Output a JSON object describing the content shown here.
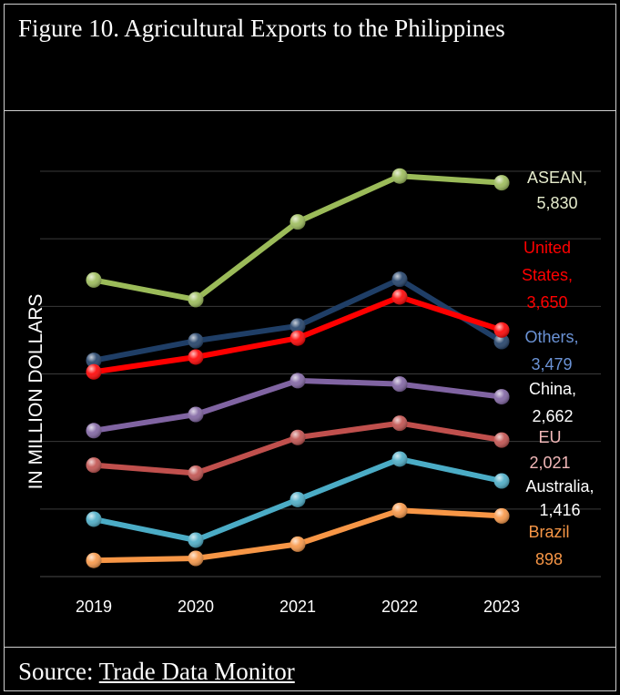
{
  "title": "Figure 10. Agricultural Exports to the Philippines",
  "source": {
    "prefix": "Source: ",
    "link_text": "Trade Data Monitor"
  },
  "chart_data": {
    "type": "line",
    "title": "Figure 10. Agricultural Exports to the Philippines",
    "xlabel": "",
    "ylabel": "IN MILLION DOLLARS",
    "categories": [
      "2019",
      "2020",
      "2021",
      "2022",
      "2023"
    ],
    "ylim": [
      0,
      6000
    ],
    "grid": true,
    "y_tick_labels_shown": false,
    "series": [
      {
        "name": "ASEAN",
        "end_label": [
          "ASEAN,",
          "5,830"
        ],
        "color": "#9bbb59",
        "label_color": "#e6eccd",
        "values": [
          4390,
          4100,
          5250,
          5930,
          5830
        ]
      },
      {
        "name": "Others",
        "end_label": [
          "Others,",
          "3,479"
        ],
        "color": "#1f3e66",
        "label_color": "#6b93d6",
        "values": [
          3200,
          3490,
          3710,
          4400,
          3479
        ]
      },
      {
        "name": "United States",
        "end_label": [
          "United",
          "States,",
          "3,650"
        ],
        "color": "#ff0000",
        "label_color": "#ff0000",
        "values": [
          3030,
          3250,
          3530,
          4140,
          3650
        ]
      },
      {
        "name": "China",
        "end_label": [
          "China,",
          "2,662"
        ],
        "color": "#8064a2",
        "label_color": "#ffffff",
        "values": [
          2160,
          2400,
          2900,
          2850,
          2662
        ]
      },
      {
        "name": "EU",
        "end_label": [
          "EU",
          "2,021"
        ],
        "color": "#c0504d",
        "label_color": "#f2b8b8",
        "values": [
          1650,
          1530,
          2060,
          2270,
          2021
        ]
      },
      {
        "name": "Australia",
        "end_label": [
          "Australia,",
          "1,416"
        ],
        "color": "#4bacc6",
        "label_color": "#ffffff",
        "values": [
          850,
          540,
          1140,
          1740,
          1416
        ]
      },
      {
        "name": "Brazil",
        "end_label": [
          "Brazil",
          "898"
        ],
        "color": "#f79646",
        "label_color": "#f79646",
        "values": [
          240,
          270,
          480,
          980,
          898
        ]
      }
    ]
  }
}
